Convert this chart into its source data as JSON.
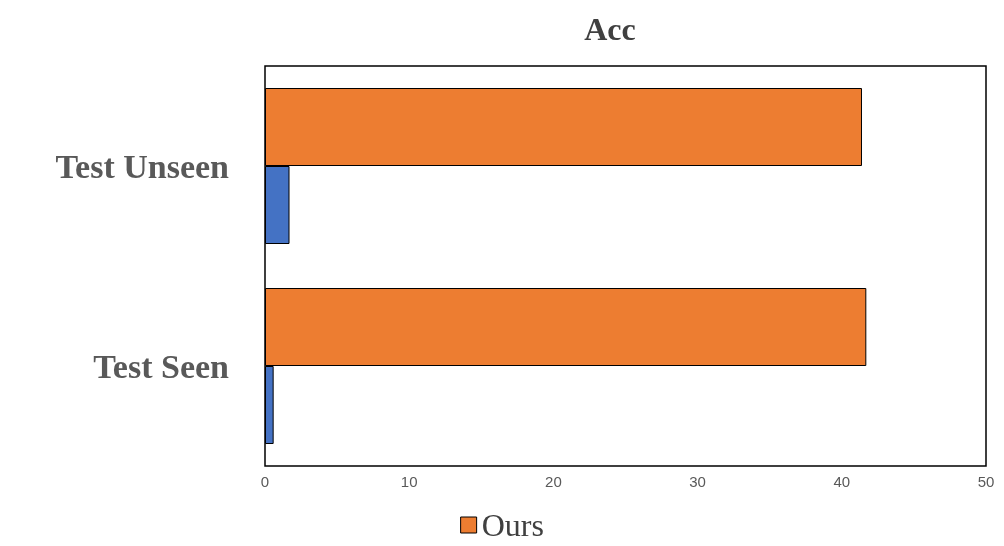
{
  "chart_data": {
    "type": "bar",
    "orientation": "horizontal",
    "title": "Acc",
    "categories": [
      "Test Unseen",
      "Test Seen"
    ],
    "series": [
      {
        "name": "Ours",
        "color": "#ed7d31",
        "values": [
          41.4,
          41.7
        ]
      },
      {
        "color": "#4472c4",
        "values": [
          1.7,
          0.6
        ]
      }
    ],
    "xlim": [
      0,
      50
    ],
    "xticks": [
      0,
      10,
      20,
      30,
      40,
      50
    ],
    "grid": false,
    "legend": "bottom"
  }
}
